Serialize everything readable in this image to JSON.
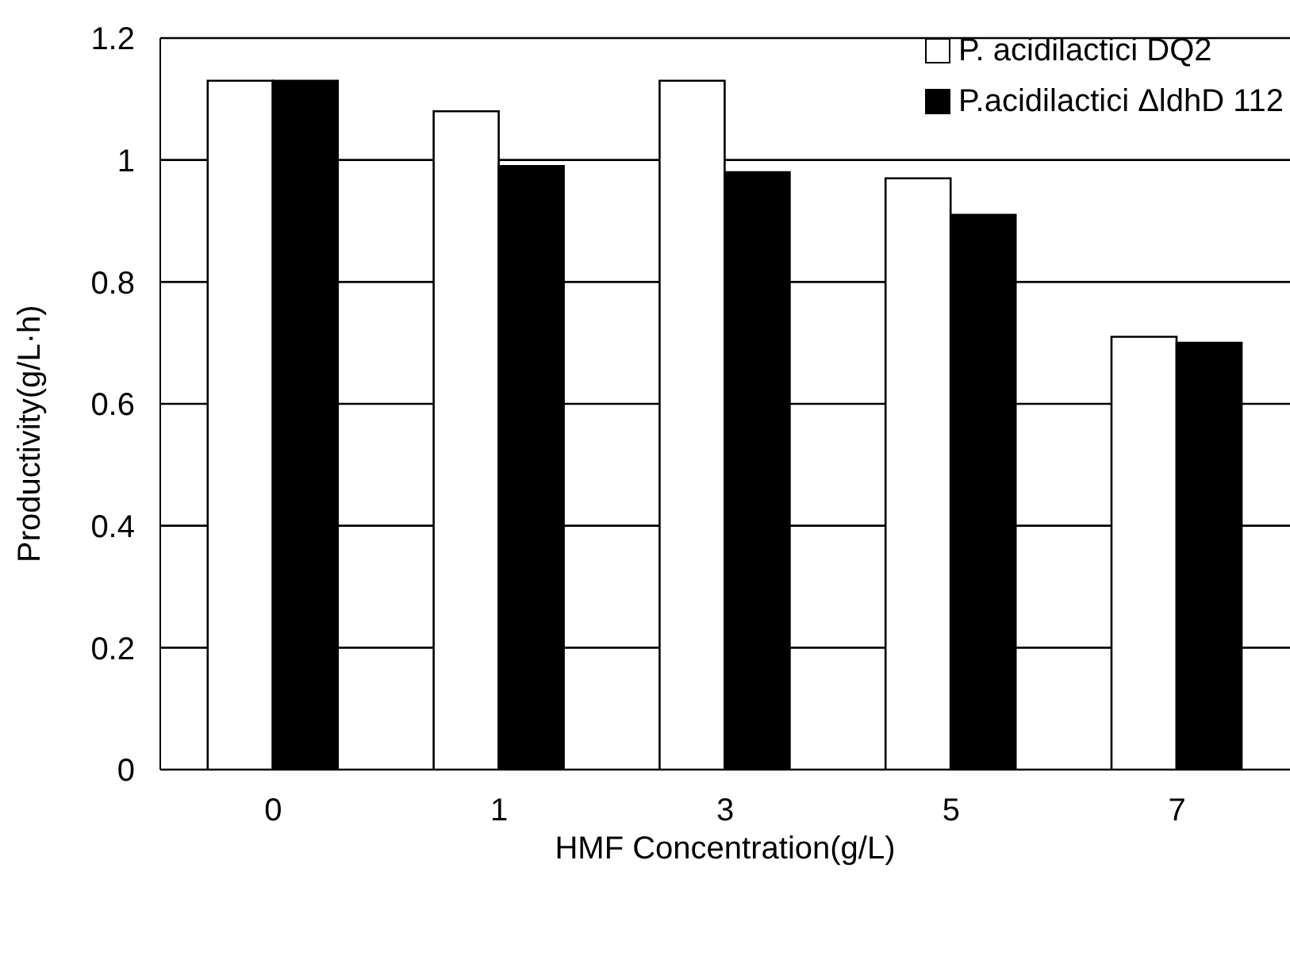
{
  "chart_data": {
    "type": "bar",
    "xlabel": "HMF Concentration(g/L)",
    "ylabel": "Productivity(g/L·h)",
    "categories": [
      "0",
      "1",
      "3",
      "5",
      "7"
    ],
    "series": [
      {
        "name": "P. acidilactici DQ2",
        "color": "#ffffff",
        "values": [
          1.13,
          1.08,
          1.13,
          0.97,
          0.71
        ]
      },
      {
        "name": "P.acidilactici ΔldhD 112",
        "color": "#000000",
        "values": [
          1.13,
          0.99,
          0.98,
          0.91,
          0.7
        ]
      }
    ],
    "ylim": [
      0,
      1.2
    ],
    "yticks": [
      0,
      0.2,
      0.4,
      0.6,
      0.8,
      1,
      1.2
    ],
    "grid": "y",
    "legend": "top right"
  }
}
